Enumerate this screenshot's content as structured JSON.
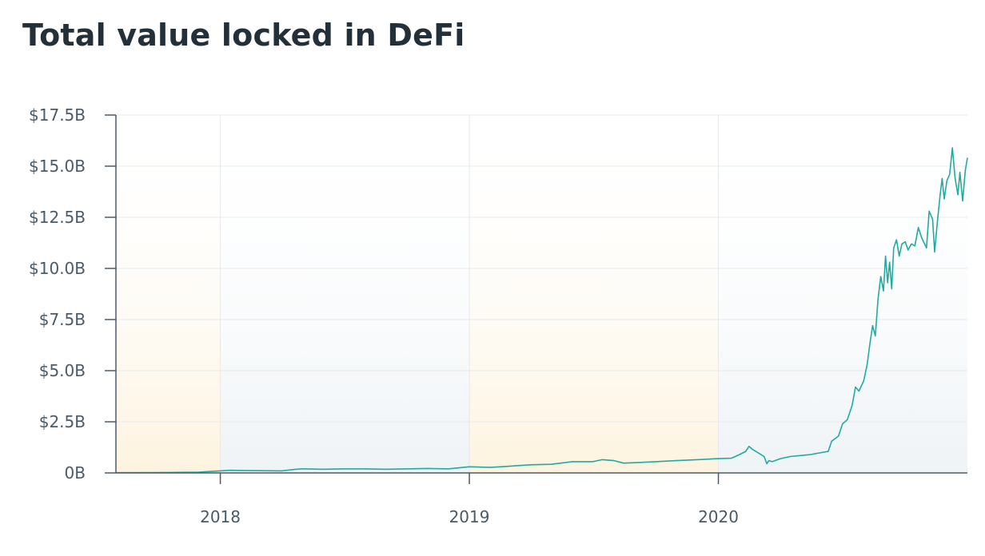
{
  "title": "Total value locked in DeFi",
  "colors": {
    "line": "#21aba0",
    "band_warm": "#fdf3df",
    "band_cool": "#eef3f6",
    "grid": "#e6e9ec",
    "axis": "#4b5a66",
    "text": "#4a5a66",
    "title": "#243039"
  },
  "chart_data": {
    "type": "area",
    "title": "Total value locked in DeFi",
    "xlabel": "",
    "ylabel": "",
    "x_type": "date",
    "xlim": [
      "2017-08-01",
      "2020-12-31"
    ],
    "ylim": [
      0,
      17.5
    ],
    "y_unit": "billion USD",
    "y_ticks": [
      {
        "value": 0,
        "label": "0B"
      },
      {
        "value": 2.5,
        "label": "$2.5B"
      },
      {
        "value": 5,
        "label": "$5.0B"
      },
      {
        "value": 7.5,
        "label": "$7.5B"
      },
      {
        "value": 10,
        "label": "$10.0B"
      },
      {
        "value": 12.5,
        "label": "$12.5B"
      },
      {
        "value": 15,
        "label": "$15.0B"
      },
      {
        "value": 17.5,
        "label": "$17.5B"
      }
    ],
    "x_ticks": [
      {
        "value": "2018-01-01",
        "label": "2018"
      },
      {
        "value": "2019-01-01",
        "label": "2019"
      },
      {
        "value": "2020-01-01",
        "label": "2020"
      }
    ],
    "grid": true,
    "background_bands": [
      {
        "from": "2017-08-01",
        "to": "2018-01-01",
        "style": "warm"
      },
      {
        "from": "2018-01-01",
        "to": "2019-01-01",
        "style": "cool"
      },
      {
        "from": "2019-01-01",
        "to": "2020-01-01",
        "style": "warm"
      },
      {
        "from": "2020-01-01",
        "to": "2020-12-31",
        "style": "cool"
      }
    ],
    "series": [
      {
        "values": [
          [
            "2017-08-01",
            0.01
          ],
          [
            "2017-10-01",
            0.02
          ],
          [
            "2017-12-01",
            0.04
          ],
          [
            "2018-01-01",
            0.1
          ],
          [
            "2018-01-15",
            0.13
          ],
          [
            "2018-02-01",
            0.12
          ],
          [
            "2018-03-01",
            0.11
          ],
          [
            "2018-04-01",
            0.1
          ],
          [
            "2018-04-20",
            0.17
          ],
          [
            "2018-05-01",
            0.2
          ],
          [
            "2018-06-01",
            0.18
          ],
          [
            "2018-07-01",
            0.2
          ],
          [
            "2018-08-01",
            0.2
          ],
          [
            "2018-09-01",
            0.18
          ],
          [
            "2018-10-01",
            0.2
          ],
          [
            "2018-11-01",
            0.22
          ],
          [
            "2018-12-01",
            0.2
          ],
          [
            "2019-01-01",
            0.3
          ],
          [
            "2019-02-01",
            0.27
          ],
          [
            "2019-03-01",
            0.33
          ],
          [
            "2019-04-01",
            0.4
          ],
          [
            "2019-05-01",
            0.42
          ],
          [
            "2019-06-01",
            0.55
          ],
          [
            "2019-07-01",
            0.55
          ],
          [
            "2019-07-15",
            0.65
          ],
          [
            "2019-08-01",
            0.6
          ],
          [
            "2019-08-15",
            0.48
          ],
          [
            "2019-09-01",
            0.5
          ],
          [
            "2019-10-01",
            0.55
          ],
          [
            "2019-11-01",
            0.6
          ],
          [
            "2019-12-01",
            0.65
          ],
          [
            "2020-01-01",
            0.7
          ],
          [
            "2020-01-20",
            0.72
          ],
          [
            "2020-02-01",
            0.9
          ],
          [
            "2020-02-10",
            1.05
          ],
          [
            "2020-02-15",
            1.3
          ],
          [
            "2020-02-20",
            1.15
          ],
          [
            "2020-03-01",
            0.95
          ],
          [
            "2020-03-08",
            0.8
          ],
          [
            "2020-03-12",
            0.45
          ],
          [
            "2020-03-15",
            0.6
          ],
          [
            "2020-03-20",
            0.55
          ],
          [
            "2020-04-01",
            0.7
          ],
          [
            "2020-04-15",
            0.8
          ],
          [
            "2020-05-01",
            0.85
          ],
          [
            "2020-05-15",
            0.9
          ],
          [
            "2020-06-01",
            1.0
          ],
          [
            "2020-06-10",
            1.05
          ],
          [
            "2020-06-15",
            1.55
          ],
          [
            "2020-06-25",
            1.8
          ],
          [
            "2020-07-01",
            2.4
          ],
          [
            "2020-07-08",
            2.6
          ],
          [
            "2020-07-15",
            3.3
          ],
          [
            "2020-07-20",
            4.2
          ],
          [
            "2020-07-25",
            4.0
          ],
          [
            "2020-08-01",
            4.5
          ],
          [
            "2020-08-06",
            5.3
          ],
          [
            "2020-08-10",
            6.3
          ],
          [
            "2020-08-14",
            7.2
          ],
          [
            "2020-08-18",
            6.7
          ],
          [
            "2020-08-22",
            8.5
          ],
          [
            "2020-08-26",
            9.6
          ],
          [
            "2020-08-30",
            8.9
          ],
          [
            "2020-09-02",
            10.6
          ],
          [
            "2020-09-05",
            9.3
          ],
          [
            "2020-09-08",
            10.3
          ],
          [
            "2020-09-11",
            9.0
          ],
          [
            "2020-09-14",
            11.0
          ],
          [
            "2020-09-18",
            11.4
          ],
          [
            "2020-09-22",
            10.6
          ],
          [
            "2020-09-26",
            11.2
          ],
          [
            "2020-10-01",
            11.3
          ],
          [
            "2020-10-05",
            10.9
          ],
          [
            "2020-10-10",
            11.2
          ],
          [
            "2020-10-15",
            11.1
          ],
          [
            "2020-10-20",
            12.0
          ],
          [
            "2020-10-25",
            11.5
          ],
          [
            "2020-11-01",
            11.0
          ],
          [
            "2020-11-05",
            12.8
          ],
          [
            "2020-11-10",
            12.4
          ],
          [
            "2020-11-13",
            10.8
          ],
          [
            "2020-11-17",
            12.3
          ],
          [
            "2020-11-21",
            13.6
          ],
          [
            "2020-11-24",
            14.4
          ],
          [
            "2020-11-27",
            13.4
          ],
          [
            "2020-12-01",
            14.3
          ],
          [
            "2020-12-05",
            14.6
          ],
          [
            "2020-12-09",
            15.9
          ],
          [
            "2020-12-13",
            14.4
          ],
          [
            "2020-12-17",
            13.6
          ],
          [
            "2020-12-20",
            14.7
          ],
          [
            "2020-12-24",
            13.3
          ],
          [
            "2020-12-28",
            14.8
          ],
          [
            "2020-12-31",
            15.4
          ]
        ]
      }
    ]
  }
}
